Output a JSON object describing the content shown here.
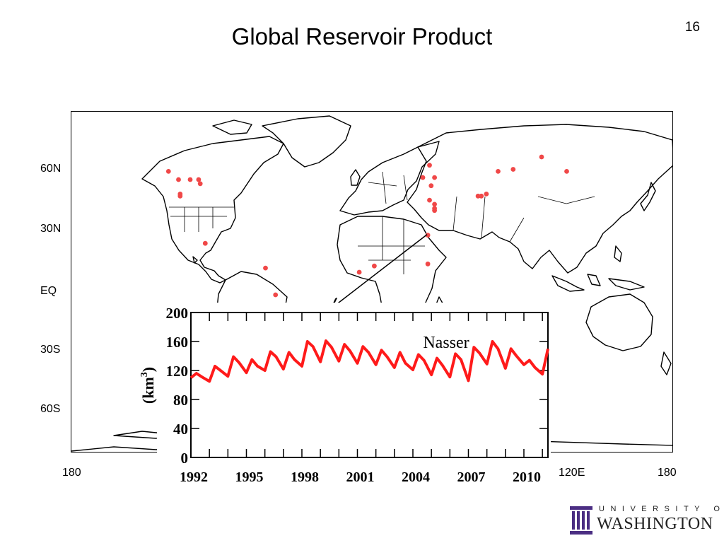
{
  "slide": {
    "title": "Global Reservoir Product",
    "number": "16"
  },
  "map": {
    "lat_labels": [
      "60N",
      "30N",
      "EQ",
      "30S",
      "60S"
    ],
    "lon_labels": [
      "180",
      "120E",
      "180"
    ],
    "land_color": "#ffffff",
    "border_color": "#000000",
    "marker_color": "#f04848",
    "markers": [
      {
        "lon": -122,
        "lat": 55
      },
      {
        "lon": -116,
        "lat": 51
      },
      {
        "lon": -109,
        "lat": 51
      },
      {
        "lon": -104,
        "lat": 51
      },
      {
        "lon": -103,
        "lat": 49
      },
      {
        "lon": -115,
        "lat": 44
      },
      {
        "lon": -115,
        "lat": 43
      },
      {
        "lon": -100,
        "lat": 20
      },
      {
        "lon": -64,
        "lat": 8
      },
      {
        "lon": -58,
        "lat": -5
      },
      {
        "lon": -8,
        "lat": 6
      },
      {
        "lon": 1,
        "lat": 9
      },
      {
        "lon": 33,
        "lat": 24
      },
      {
        "lon": 33,
        "lat": 10
      },
      {
        "lon": 34,
        "lat": 58
      },
      {
        "lon": 30,
        "lat": 52
      },
      {
        "lon": 35,
        "lat": 48
      },
      {
        "lon": 37,
        "lat": 52
      },
      {
        "lon": 34,
        "lat": 41
      },
      {
        "lon": 37,
        "lat": 39
      },
      {
        "lon": 37,
        "lat": 37
      },
      {
        "lon": 37,
        "lat": 36
      },
      {
        "lon": 63,
        "lat": 43
      },
      {
        "lon": 65,
        "lat": 43
      },
      {
        "lon": 68,
        "lat": 44
      },
      {
        "lon": 75,
        "lat": 55
      },
      {
        "lon": 84,
        "lat": 56
      },
      {
        "lon": 101,
        "lat": 62
      },
      {
        "lon": 116,
        "lat": 55
      }
    ],
    "callout_target": {
      "lon": 33,
      "lat": 24
    }
  },
  "chart_data": {
    "type": "line",
    "title": "Nasser",
    "ylabel": "(km",
    "ylabel_sup": "3",
    "ylabel_close": ")",
    "xlim": [
      1992,
      2011.3
    ],
    "ylim": [
      0,
      200
    ],
    "xticks": [
      1992,
      1995,
      1998,
      2001,
      2004,
      2007,
      2010
    ],
    "yticks": [
      0,
      40,
      80,
      120,
      160,
      200
    ],
    "line_color": "#ff1a1a",
    "series": [
      {
        "x": [
          1992.0,
          1992.3,
          1992.6,
          1993.0,
          1993.3,
          1993.6,
          1994.0,
          1994.3,
          1994.6,
          1995.0,
          1995.3,
          1995.6,
          1996.0,
          1996.3,
          1996.6,
          1997.0,
          1997.3,
          1997.6,
          1998.0,
          1998.3,
          1998.6,
          1999.0,
          1999.3,
          1999.6,
          2000.0,
          2000.3,
          2000.6,
          2001.0,
          2001.3,
          2001.6,
          2002.0,
          2002.3,
          2002.6,
          2003.0,
          2003.3,
          2003.6,
          2004.0,
          2004.3,
          2004.6,
          2005.0,
          2005.3,
          2005.6,
          2006.0,
          2006.3,
          2006.6,
          2007.0,
          2007.3,
          2007.6,
          2008.0,
          2008.3,
          2008.6,
          2009.0,
          2009.3,
          2009.6,
          2010.0,
          2010.3,
          2010.6,
          2011.0,
          2011.3
        ],
        "values": [
          110,
          116,
          111,
          105,
          126,
          120,
          112,
          139,
          131,
          117,
          135,
          126,
          120,
          146,
          139,
          122,
          145,
          135,
          126,
          160,
          153,
          132,
          161,
          152,
          133,
          156,
          147,
          130,
          153,
          145,
          128,
          148,
          139,
          124,
          145,
          130,
          121,
          142,
          134,
          114,
          137,
          127,
          111,
          143,
          135,
          106,
          152,
          144,
          129,
          160,
          150,
          123,
          150,
          140,
          128,
          134,
          124,
          115,
          150
        ]
      }
    ]
  },
  "logo": {
    "line1": "UNIVERSITY OF",
    "line2": "WASHINGTON"
  }
}
